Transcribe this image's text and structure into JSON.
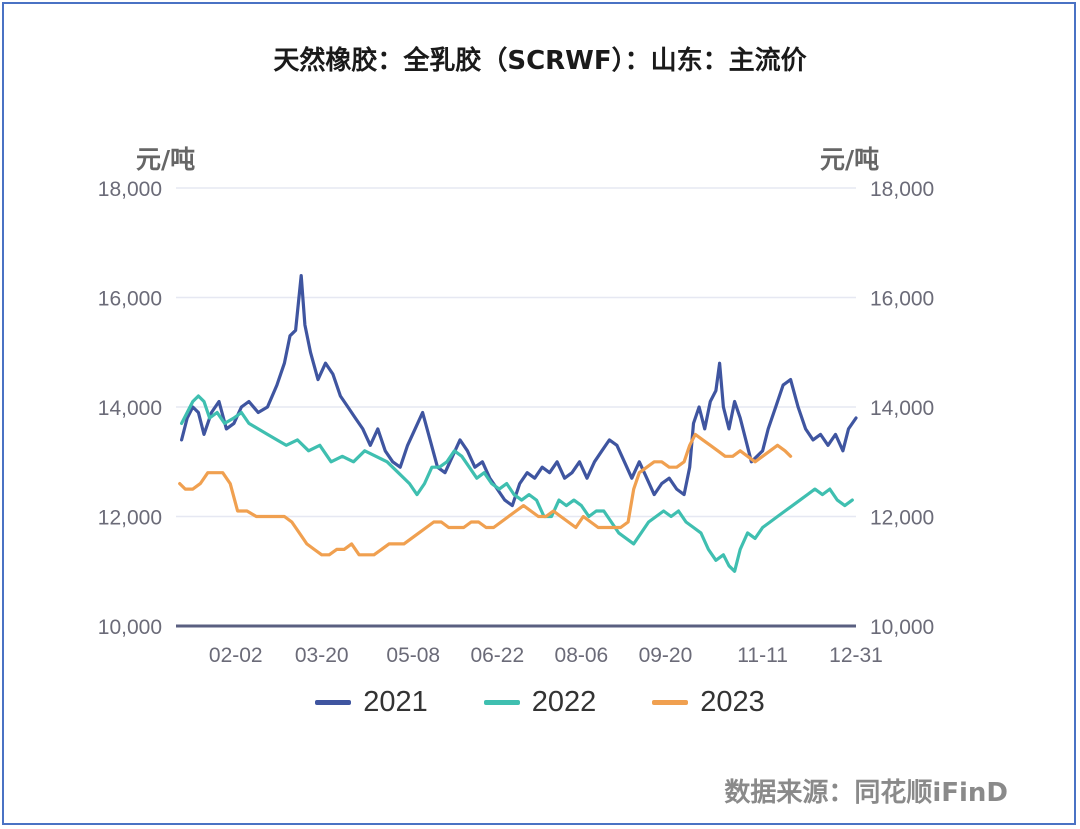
{
  "chart_data": {
    "type": "line",
    "title": "天然橡胶：全乳胶（SCRWF）：山东：主流价",
    "y_unit_left": "元/吨",
    "y_unit_right": "元/吨",
    "ylim": [
      10000,
      18000
    ],
    "yticks": [
      "10,000",
      "12,000",
      "14,000",
      "16,000",
      "18,000"
    ],
    "ytick_values": [
      10000,
      12000,
      14000,
      16000,
      18000
    ],
    "x_axis": "month-day",
    "xlim": [
      "01-01",
      "12-31"
    ],
    "xticks": [
      "02-02",
      "03-20",
      "05-08",
      "06-22",
      "08-06",
      "09-20",
      "11-11",
      "12-31"
    ],
    "grid": true,
    "legend_position": "bottom",
    "source": "数据来源：同花顺iFinD",
    "series": [
      {
        "name": "2021",
        "color": "#3f55a0",
        "points": [
          [
            "01-04",
            13400
          ],
          [
            "01-07",
            13800
          ],
          [
            "01-10",
            14000
          ],
          [
            "01-13",
            13900
          ],
          [
            "01-16",
            13500
          ],
          [
            "01-20",
            13900
          ],
          [
            "01-24",
            14100
          ],
          [
            "01-28",
            13600
          ],
          [
            "02-01",
            13700
          ],
          [
            "02-05",
            14000
          ],
          [
            "02-09",
            14100
          ],
          [
            "02-14",
            13900
          ],
          [
            "02-19",
            14000
          ],
          [
            "02-24",
            14400
          ],
          [
            "02-28",
            14800
          ],
          [
            "03-03",
            15300
          ],
          [
            "03-06",
            15400
          ],
          [
            "03-09",
            16400
          ],
          [
            "03-11",
            15500
          ],
          [
            "03-14",
            15000
          ],
          [
            "03-18",
            14500
          ],
          [
            "03-22",
            14800
          ],
          [
            "03-26",
            14600
          ],
          [
            "03-30",
            14200
          ],
          [
            "04-03",
            14000
          ],
          [
            "04-07",
            13800
          ],
          [
            "04-11",
            13600
          ],
          [
            "04-15",
            13300
          ],
          [
            "04-19",
            13600
          ],
          [
            "04-23",
            13200
          ],
          [
            "04-27",
            13000
          ],
          [
            "05-01",
            12900
          ],
          [
            "05-05",
            13300
          ],
          [
            "05-09",
            13600
          ],
          [
            "05-13",
            13900
          ],
          [
            "05-17",
            13400
          ],
          [
            "05-21",
            12900
          ],
          [
            "05-25",
            12800
          ],
          [
            "05-29",
            13100
          ],
          [
            "06-02",
            13400
          ],
          [
            "06-06",
            13200
          ],
          [
            "06-10",
            12900
          ],
          [
            "06-14",
            13000
          ],
          [
            "06-18",
            12700
          ],
          [
            "06-22",
            12500
          ],
          [
            "06-26",
            12300
          ],
          [
            "06-30",
            12200
          ],
          [
            "07-04",
            12600
          ],
          [
            "07-08",
            12800
          ],
          [
            "07-12",
            12700
          ],
          [
            "07-16",
            12900
          ],
          [
            "07-20",
            12800
          ],
          [
            "07-24",
            13000
          ],
          [
            "07-28",
            12700
          ],
          [
            "08-01",
            12800
          ],
          [
            "08-05",
            13000
          ],
          [
            "08-09",
            12700
          ],
          [
            "08-13",
            13000
          ],
          [
            "08-17",
            13200
          ],
          [
            "08-21",
            13400
          ],
          [
            "08-25",
            13300
          ],
          [
            "08-29",
            13000
          ],
          [
            "09-02",
            12700
          ],
          [
            "09-06",
            13000
          ],
          [
            "09-10",
            12700
          ],
          [
            "09-14",
            12400
          ],
          [
            "09-18",
            12600
          ],
          [
            "09-22",
            12700
          ],
          [
            "09-26",
            12500
          ],
          [
            "09-30",
            12400
          ],
          [
            "10-03",
            12900
          ],
          [
            "10-05",
            13700
          ],
          [
            "10-08",
            14000
          ],
          [
            "10-11",
            13600
          ],
          [
            "10-14",
            14100
          ],
          [
            "10-17",
            14300
          ],
          [
            "10-19",
            14800
          ],
          [
            "10-21",
            14000
          ],
          [
            "10-24",
            13600
          ],
          [
            "10-27",
            14100
          ],
          [
            "10-30",
            13800
          ],
          [
            "11-02",
            13400
          ],
          [
            "11-05",
            13000
          ],
          [
            "11-08",
            13100
          ],
          [
            "11-11",
            13200
          ],
          [
            "11-14",
            13600
          ],
          [
            "11-18",
            14000
          ],
          [
            "11-22",
            14400
          ],
          [
            "11-26",
            14500
          ],
          [
            "11-30",
            14000
          ],
          [
            "12-04",
            13600
          ],
          [
            "12-08",
            13400
          ],
          [
            "12-12",
            13500
          ],
          [
            "12-16",
            13300
          ],
          [
            "12-20",
            13500
          ],
          [
            "12-24",
            13200
          ],
          [
            "12-27",
            13600
          ],
          [
            "12-31",
            13800
          ]
        ]
      },
      {
        "name": "2022",
        "color": "#3fbfb0",
        "points": [
          [
            "01-04",
            13700
          ],
          [
            "01-07",
            13900
          ],
          [
            "01-10",
            14100
          ],
          [
            "01-13",
            14200
          ],
          [
            "01-16",
            14100
          ],
          [
            "01-19",
            13800
          ],
          [
            "01-23",
            13900
          ],
          [
            "01-27",
            13700
          ],
          [
            "02-01",
            13800
          ],
          [
            "02-05",
            13900
          ],
          [
            "02-09",
            13700
          ],
          [
            "02-14",
            13600
          ],
          [
            "02-19",
            13500
          ],
          [
            "02-24",
            13400
          ],
          [
            "03-01",
            13300
          ],
          [
            "03-07",
            13400
          ],
          [
            "03-13",
            13200
          ],
          [
            "03-19",
            13300
          ],
          [
            "03-25",
            13000
          ],
          [
            "03-31",
            13100
          ],
          [
            "04-06",
            13000
          ],
          [
            "04-12",
            13200
          ],
          [
            "04-18",
            13100
          ],
          [
            "04-24",
            13000
          ],
          [
            "04-30",
            12800
          ],
          [
            "05-06",
            12600
          ],
          [
            "05-10",
            12400
          ],
          [
            "05-14",
            12600
          ],
          [
            "05-18",
            12900
          ],
          [
            "05-22",
            12900
          ],
          [
            "05-26",
            13000
          ],
          [
            "05-30",
            13200
          ],
          [
            "06-03",
            13100
          ],
          [
            "06-07",
            12900
          ],
          [
            "06-11",
            12700
          ],
          [
            "06-15",
            12800
          ],
          [
            "06-19",
            12600
          ],
          [
            "06-23",
            12500
          ],
          [
            "06-27",
            12600
          ],
          [
            "07-01",
            12400
          ],
          [
            "07-05",
            12300
          ],
          [
            "07-09",
            12400
          ],
          [
            "07-13",
            12300
          ],
          [
            "07-17",
            12000
          ],
          [
            "07-21",
            12000
          ],
          [
            "07-25",
            12300
          ],
          [
            "07-29",
            12200
          ],
          [
            "08-02",
            12300
          ],
          [
            "08-06",
            12200
          ],
          [
            "08-10",
            12000
          ],
          [
            "08-14",
            12100
          ],
          [
            "08-18",
            12100
          ],
          [
            "08-22",
            11900
          ],
          [
            "08-26",
            11700
          ],
          [
            "08-30",
            11600
          ],
          [
            "09-03",
            11500
          ],
          [
            "09-07",
            11700
          ],
          [
            "09-11",
            11900
          ],
          [
            "09-15",
            12000
          ],
          [
            "09-19",
            12100
          ],
          [
            "09-23",
            12000
          ],
          [
            "09-27",
            12100
          ],
          [
            "10-01",
            11900
          ],
          [
            "10-05",
            11800
          ],
          [
            "10-09",
            11700
          ],
          [
            "10-13",
            11400
          ],
          [
            "10-17",
            11200
          ],
          [
            "10-21",
            11300
          ],
          [
            "10-24",
            11100
          ],
          [
            "10-27",
            11000
          ],
          [
            "10-30",
            11400
          ],
          [
            "11-03",
            11700
          ],
          [
            "11-07",
            11600
          ],
          [
            "11-11",
            11800
          ],
          [
            "11-15",
            11900
          ],
          [
            "11-19",
            12000
          ],
          [
            "11-23",
            12100
          ],
          [
            "11-27",
            12200
          ],
          [
            "12-01",
            12300
          ],
          [
            "12-05",
            12400
          ],
          [
            "12-09",
            12500
          ],
          [
            "12-13",
            12400
          ],
          [
            "12-17",
            12500
          ],
          [
            "12-21",
            12300
          ],
          [
            "12-25",
            12200
          ],
          [
            "12-29",
            12300
          ]
        ]
      },
      {
        "name": "2023",
        "color": "#f0a050",
        "points": [
          [
            "01-03",
            12600
          ],
          [
            "01-06",
            12500
          ],
          [
            "01-10",
            12500
          ],
          [
            "01-14",
            12600
          ],
          [
            "01-18",
            12800
          ],
          [
            "01-22",
            12800
          ],
          [
            "01-26",
            12800
          ],
          [
            "01-30",
            12600
          ],
          [
            "02-03",
            12100
          ],
          [
            "02-08",
            12100
          ],
          [
            "02-13",
            12000
          ],
          [
            "02-18",
            12000
          ],
          [
            "02-23",
            12000
          ],
          [
            "02-28",
            12000
          ],
          [
            "03-04",
            11900
          ],
          [
            "03-08",
            11700
          ],
          [
            "03-12",
            11500
          ],
          [
            "03-16",
            11400
          ],
          [
            "03-20",
            11300
          ],
          [
            "03-24",
            11300
          ],
          [
            "03-28",
            11400
          ],
          [
            "04-01",
            11400
          ],
          [
            "04-05",
            11500
          ],
          [
            "04-09",
            11300
          ],
          [
            "04-13",
            11300
          ],
          [
            "04-17",
            11300
          ],
          [
            "04-21",
            11400
          ],
          [
            "04-25",
            11500
          ],
          [
            "04-29",
            11500
          ],
          [
            "05-03",
            11500
          ],
          [
            "05-07",
            11600
          ],
          [
            "05-11",
            11700
          ],
          [
            "05-15",
            11800
          ],
          [
            "05-19",
            11900
          ],
          [
            "05-23",
            11900
          ],
          [
            "05-27",
            11800
          ],
          [
            "05-31",
            11800
          ],
          [
            "06-04",
            11800
          ],
          [
            "06-08",
            11900
          ],
          [
            "06-12",
            11900
          ],
          [
            "06-16",
            11800
          ],
          [
            "06-20",
            11800
          ],
          [
            "06-24",
            11900
          ],
          [
            "06-28",
            12000
          ],
          [
            "07-02",
            12100
          ],
          [
            "07-06",
            12200
          ],
          [
            "07-10",
            12100
          ],
          [
            "07-14",
            12000
          ],
          [
            "07-18",
            12000
          ],
          [
            "07-22",
            12100
          ],
          [
            "07-26",
            12000
          ],
          [
            "07-30",
            11900
          ],
          [
            "08-03",
            11800
          ],
          [
            "08-07",
            12000
          ],
          [
            "08-11",
            11900
          ],
          [
            "08-15",
            11800
          ],
          [
            "08-19",
            11800
          ],
          [
            "08-23",
            11800
          ],
          [
            "08-27",
            11800
          ],
          [
            "08-31",
            11900
          ],
          [
            "09-03",
            12500
          ],
          [
            "09-06",
            12800
          ],
          [
            "09-10",
            12900
          ],
          [
            "09-14",
            13000
          ],
          [
            "09-18",
            13000
          ],
          [
            "09-22",
            12900
          ],
          [
            "09-26",
            12900
          ],
          [
            "09-30",
            13000
          ],
          [
            "10-03",
            13300
          ],
          [
            "10-06",
            13500
          ],
          [
            "10-10",
            13400
          ],
          [
            "10-14",
            13300
          ],
          [
            "10-18",
            13200
          ],
          [
            "10-22",
            13100
          ],
          [
            "10-26",
            13100
          ],
          [
            "10-30",
            13200
          ],
          [
            "11-03",
            13100
          ],
          [
            "11-07",
            13000
          ],
          [
            "11-11",
            13100
          ],
          [
            "11-15",
            13200
          ],
          [
            "11-19",
            13300
          ],
          [
            "11-23",
            13200
          ],
          [
            "11-26",
            13100
          ]
        ]
      }
    ]
  }
}
